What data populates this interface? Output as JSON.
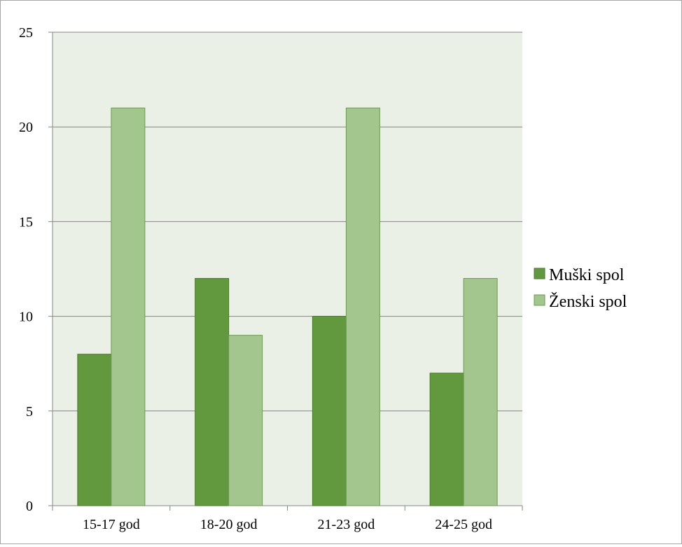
{
  "chart_data": {
    "type": "bar",
    "categories": [
      "15-17 god",
      "18-20 god",
      "21-23 god",
      "24-25 god"
    ],
    "series": [
      {
        "name": "Muški spol",
        "values": [
          8,
          12,
          10,
          7
        ],
        "color": "#62993e"
      },
      {
        "name": "Ženski spol",
        "values": [
          21,
          9,
          21,
          12
        ],
        "color": "#a3c58e"
      }
    ],
    "ylim": [
      0,
      25
    ],
    "yticks": [
      0,
      5,
      10,
      15,
      20,
      25
    ],
    "grid": true,
    "legend_position": "right",
    "colors": {
      "plot_background": "#ebf0e7",
      "gridline": "#868686",
      "bar_border_dark": "#4a7a2c",
      "bar_border_light": "#6f9a55"
    }
  }
}
